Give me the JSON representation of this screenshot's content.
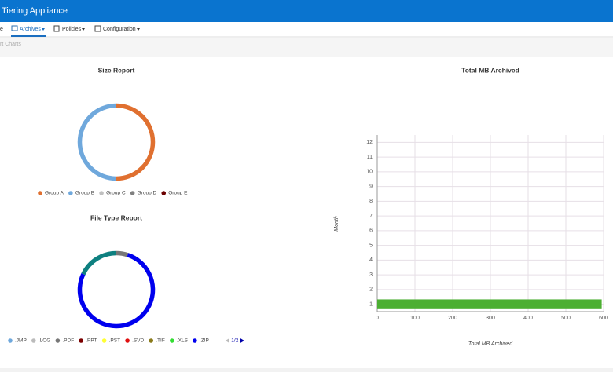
{
  "header": {
    "title": "Tiering Appliance"
  },
  "nav": {
    "items": [
      "e",
      "Archives",
      "Policies",
      "Configuration"
    ]
  },
  "breadcrumb": "rt Charts",
  "chart_data": [
    {
      "type": "pie",
      "title": "Size Report",
      "categories": [
        "Group A",
        "Group B",
        "Group C",
        "Group D",
        "Group E"
      ],
      "values": [
        50,
        50,
        0,
        0,
        0
      ],
      "colors": [
        "#e07030",
        "#6fa8dc",
        "#c0c0c0",
        "#808080",
        "#6b0000"
      ]
    },
    {
      "type": "pie",
      "title": "File Type Report",
      "categories": [
        ".JMP",
        ".LOG",
        ".PDF",
        ".PPT",
        ".PST",
        ".SVD",
        ".TIF",
        ".XLS",
        ".ZIP",
        null
      ],
      "values": [
        0,
        0,
        5,
        0,
        0,
        0,
        0,
        0,
        77,
        18
      ],
      "colors": [
        "#6fa8dc",
        "#bbbbbb",
        "#777777",
        "#7b0000",
        "#ffff33",
        "#e01010",
        "#8a7a1a",
        "#33dd33",
        "#0000ee",
        "#0e8080"
      ],
      "legend_page": "1/2"
    },
    {
      "type": "bar",
      "orientation": "horizontal",
      "title": "Total MB Archived",
      "categories": [
        "1",
        "2",
        "3",
        "4",
        "5",
        "6",
        "7",
        "8",
        "9",
        "10",
        "11",
        "12"
      ],
      "values": [
        595,
        0,
        0,
        0,
        0,
        0,
        0,
        0,
        0,
        0,
        0,
        0
      ],
      "color": "#4caf32",
      "xlim": [
        0,
        600
      ],
      "xticks": [
        0,
        100,
        200,
        300,
        400,
        500,
        600
      ],
      "x_label": "Total MB Archived",
      "y_label": "Month",
      "grid": true
    }
  ]
}
